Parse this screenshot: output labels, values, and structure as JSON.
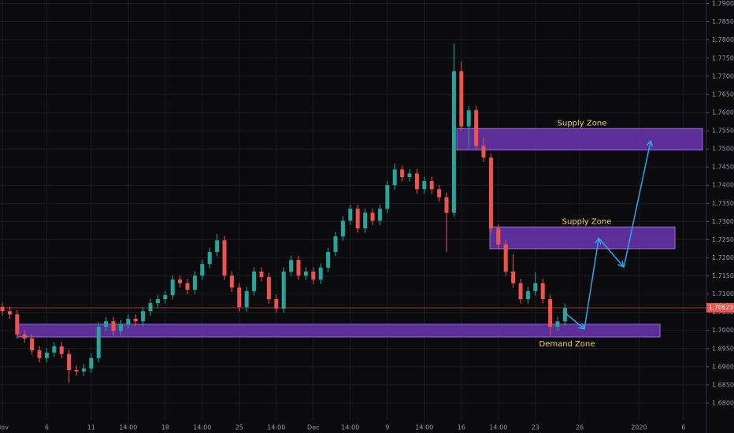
{
  "chart_data": {
    "type": "candlestick",
    "up_color": "#26a69a",
    "down_color": "#ef5350",
    "ylim": [
      1.675,
      1.791
    ],
    "yticks": [
      {
        "value": 1.79,
        "label": "1.79000"
      },
      {
        "value": 1.785,
        "label": "1.78500"
      },
      {
        "value": 1.78,
        "label": "1.78000"
      },
      {
        "value": 1.775,
        "label": "1.77500"
      },
      {
        "value": 1.77,
        "label": "1.77000"
      },
      {
        "value": 1.765,
        "label": "1.76500"
      },
      {
        "value": 1.76,
        "label": "1.76000"
      },
      {
        "value": 1.755,
        "label": "1.75500"
      },
      {
        "value": 1.75,
        "label": "1.75000"
      },
      {
        "value": 1.745,
        "label": "1.74500"
      },
      {
        "value": 1.74,
        "label": "1.74000"
      },
      {
        "value": 1.735,
        "label": "1.73500"
      },
      {
        "value": 1.73,
        "label": "1.73000"
      },
      {
        "value": 1.725,
        "label": "1.72500"
      },
      {
        "value": 1.72,
        "label": "1.72000"
      },
      {
        "value": 1.715,
        "label": "1.71500"
      },
      {
        "value": 1.71,
        "label": "1.71000"
      },
      {
        "value": 1.705,
        "label": "1.70500"
      },
      {
        "value": 1.7,
        "label": "1.70000"
      },
      {
        "value": 1.695,
        "label": "1.69500"
      },
      {
        "value": 1.69,
        "label": "1.69000"
      },
      {
        "value": 1.685,
        "label": "1.68500"
      },
      {
        "value": 1.68,
        "label": "1.68000"
      }
    ],
    "categories": [
      "Nov",
      null,
      null,
      null,
      null,
      null,
      "6",
      null,
      null,
      null,
      null,
      null,
      "11",
      null,
      null,
      null,
      null,
      "14:00",
      null,
      null,
      null,
      null,
      "18",
      null,
      null,
      null,
      null,
      "14:00",
      null,
      null,
      null,
      null,
      "25",
      null,
      null,
      null,
      null,
      "14:00",
      null,
      null,
      null,
      null,
      "Dec",
      null,
      null,
      null,
      null,
      "14:00",
      null,
      null,
      null,
      null,
      "9",
      null,
      null,
      null,
      null,
      "14:00",
      null,
      null,
      null,
      null,
      "16",
      null,
      null,
      null,
      null,
      "14:00",
      null,
      null,
      null,
      null,
      "23",
      null,
      null,
      null,
      null,
      null,
      "26",
      null,
      null,
      null,
      null,
      null,
      null,
      null,
      "2020",
      null,
      null,
      null,
      null,
      null,
      "6"
    ],
    "open": [
      1.7065,
      1.7053,
      1.7044,
      1.6989,
      1.6978,
      1.6945,
      1.6924,
      1.6939,
      1.6956,
      1.6935,
      1.6891,
      1.6887,
      1.6895,
      1.6924,
      1.701,
      1.7025,
      1.6999,
      1.7017,
      1.7032,
      1.7025,
      1.7053,
      1.7075,
      1.7086,
      1.7097,
      1.714,
      1.713,
      1.7112,
      1.7151,
      1.7183,
      1.7216,
      1.7248,
      1.7151,
      1.7118,
      1.7064,
      1.7108,
      1.7162,
      1.7147,
      1.7086,
      1.706,
      1.7162,
      1.7194,
      1.7151,
      1.7162,
      1.714,
      1.7173,
      1.7216,
      1.7259,
      1.7302,
      1.7335,
      1.7281,
      1.7324,
      1.7302,
      1.7335,
      1.74,
      1.7443,
      1.7422,
      1.7432,
      1.7389,
      1.7411,
      1.7389,
      1.7367,
      1.7324,
      1.7714,
      1.7562,
      1.7606,
      1.7508,
      1.7476,
      1.7281,
      1.7237,
      1.7162,
      1.713,
      1.7086,
      1.7108,
      1.713,
      1.7086,
      1.701,
      1.7025,
      null,
      null,
      null,
      null,
      null,
      null,
      null,
      null,
      null,
      null,
      null,
      null,
      null,
      null,
      null,
      null
    ],
    "high": [
      1.7077,
      1.7065,
      1.7056,
      1.7001,
      1.699,
      1.6957,
      1.6951,
      1.6968,
      1.6968,
      1.6947,
      1.6903,
      1.6907,
      1.6936,
      1.7022,
      1.7037,
      1.7037,
      1.7029,
      1.7044,
      1.7044,
      1.7065,
      1.7087,
      1.7098,
      1.7109,
      1.7152,
      1.7152,
      1.7142,
      1.7163,
      1.7195,
      1.7228,
      1.7265,
      1.726,
      1.7163,
      1.713,
      1.712,
      1.7174,
      1.7174,
      1.7159,
      1.7098,
      1.7174,
      1.7206,
      1.7206,
      1.7174,
      1.7174,
      1.7185,
      1.7228,
      1.7271,
      1.7314,
      1.7347,
      1.7347,
      1.7336,
      1.7336,
      1.7347,
      1.7412,
      1.746,
      1.7455,
      1.7444,
      1.7444,
      1.7423,
      1.7423,
      1.7401,
      1.7379,
      1.779,
      1.774,
      1.7618,
      1.7618,
      1.753,
      1.7488,
      1.7293,
      1.7249,
      1.721,
      1.7142,
      1.712,
      1.716,
      1.7142,
      1.7098,
      1.7037,
      1.7074,
      null,
      null,
      null,
      null,
      null,
      null,
      null,
      null,
      null,
      null,
      null,
      null,
      null,
      null,
      null,
      null
    ],
    "low": [
      1.7041,
      1.7032,
      1.6977,
      1.6966,
      1.6933,
      1.6912,
      1.6912,
      1.6927,
      1.6923,
      1.6855,
      1.6875,
      1.6875,
      1.6883,
      1.6912,
      1.6998,
      1.6987,
      1.6987,
      1.7005,
      1.7013,
      1.7013,
      1.7041,
      1.7063,
      1.7074,
      1.7085,
      1.7118,
      1.71,
      1.71,
      1.7139,
      1.7171,
      1.7204,
      1.7139,
      1.7106,
      1.7052,
      1.7052,
      1.7096,
      1.7135,
      1.7074,
      1.7048,
      1.7048,
      1.715,
      1.7139,
      1.7139,
      1.7128,
      1.7128,
      1.7161,
      1.7204,
      1.7247,
      1.729,
      1.7269,
      1.7269,
      1.729,
      1.729,
      1.7323,
      1.7388,
      1.741,
      1.741,
      1.7377,
      1.7377,
      1.7377,
      1.7355,
      1.7216,
      1.7312,
      1.755,
      1.75,
      1.7496,
      1.7464,
      1.7269,
      1.7225,
      1.715,
      1.7118,
      1.7074,
      1.7074,
      1.7096,
      1.7074,
      1.6985,
      1.6998,
      1.7013,
      null,
      null,
      null,
      null,
      null,
      null,
      null,
      null,
      null,
      null,
      null,
      null,
      null,
      null,
      null,
      null
    ],
    "close": [
      1.7053,
      1.7044,
      1.6989,
      1.6978,
      1.6945,
      1.6924,
      1.6939,
      1.6956,
      1.6935,
      1.6891,
      1.6887,
      1.6895,
      1.6924,
      1.701,
      1.7025,
      1.6999,
      1.7017,
      1.7032,
      1.7025,
      1.7053,
      1.7075,
      1.7086,
      1.7097,
      1.714,
      1.713,
      1.7112,
      1.7151,
      1.7183,
      1.7216,
      1.7248,
      1.7151,
      1.7118,
      1.7064,
      1.7108,
      1.7162,
      1.7147,
      1.7086,
      1.706,
      1.7162,
      1.7194,
      1.7151,
      1.7162,
      1.714,
      1.7173,
      1.7216,
      1.7259,
      1.7302,
      1.7335,
      1.7281,
      1.7324,
      1.7302,
      1.7335,
      1.74,
      1.7443,
      1.7422,
      1.7432,
      1.7389,
      1.7411,
      1.7389,
      1.7367,
      1.7324,
      1.7714,
      1.7562,
      1.7606,
      1.7508,
      1.7476,
      1.7281,
      1.7237,
      1.7162,
      1.713,
      1.7086,
      1.7108,
      1.713,
      1.7086,
      1.701,
      1.7025,
      1.7062,
      null,
      null,
      null,
      null,
      null,
      null,
      null,
      null,
      null,
      null,
      null,
      null,
      null,
      null,
      null,
      null
    ],
    "last_price": 1.70623,
    "last_price_color": "#ef5350",
    "zone_color": "#6a35b0",
    "zones": [
      {
        "label": "Supply Zone",
        "top": 1.7556,
        "bottom": 1.7497
      },
      {
        "label": "Supply Zone",
        "top": 1.7285,
        "bottom": 1.7225
      },
      {
        "label": "Demand Zone",
        "top": 1.7017,
        "bottom": 1.6982
      }
    ]
  }
}
